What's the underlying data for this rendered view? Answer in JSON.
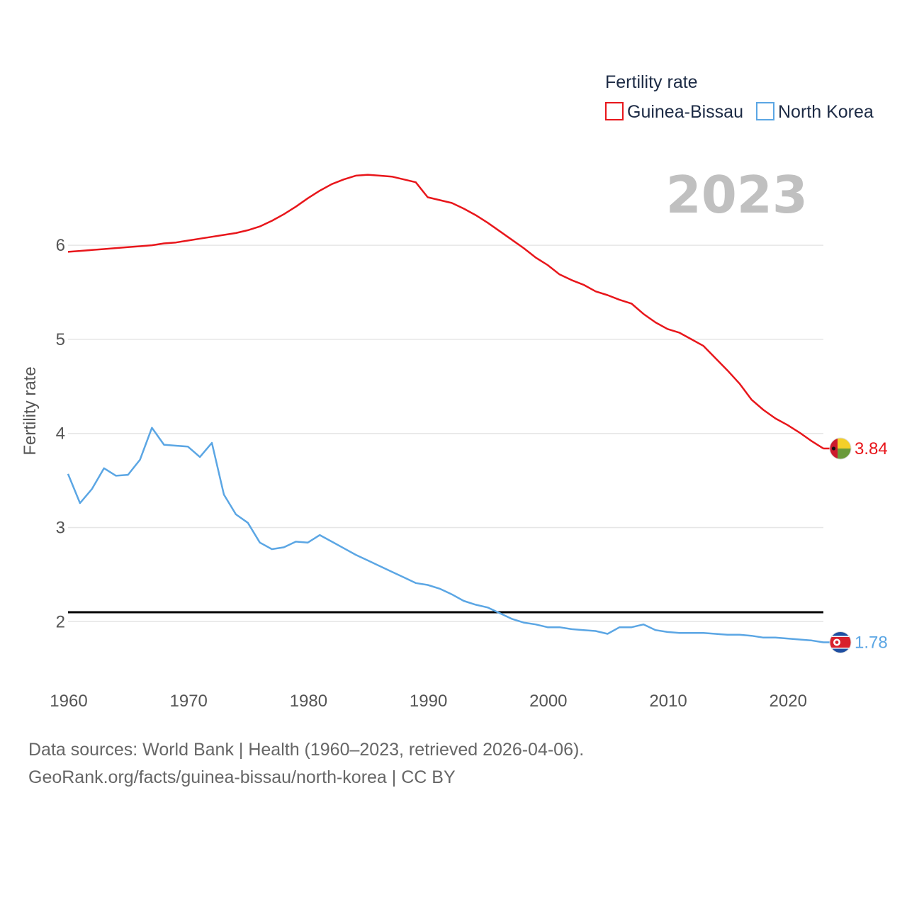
{
  "chart_data": {
    "type": "line",
    "ylabel": "Fertility rate",
    "legend_title": "Fertility rate",
    "current_year": "2023",
    "ylim": [
      1.55,
      6.95
    ],
    "xlim": [
      1960,
      2023
    ],
    "yticks": [
      2,
      3,
      4,
      5,
      6
    ],
    "xticks": [
      1960,
      1970,
      1980,
      1990,
      2000,
      2010,
      2020
    ],
    "reference_line": 2.1,
    "series": [
      {
        "name": "Guinea-Bissau",
        "color": "#e8161b",
        "end_label": "3.84",
        "flag": "guinea-bissau-flag",
        "x": [
          1960,
          1961,
          1962,
          1963,
          1964,
          1965,
          1966,
          1967,
          1968,
          1969,
          1970,
          1971,
          1972,
          1973,
          1974,
          1975,
          1976,
          1977,
          1978,
          1979,
          1980,
          1981,
          1982,
          1983,
          1984,
          1985,
          1986,
          1987,
          1988,
          1989,
          1990,
          1991,
          1992,
          1993,
          1994,
          1995,
          1996,
          1997,
          1998,
          1999,
          2000,
          2001,
          2002,
          2003,
          2004,
          2005,
          2006,
          2007,
          2008,
          2009,
          2010,
          2011,
          2012,
          2013,
          2014,
          2015,
          2016,
          2017,
          2018,
          2019,
          2020,
          2021,
          2022,
          2023
        ],
        "values": [
          5.93,
          5.94,
          5.95,
          5.96,
          5.97,
          5.98,
          5.99,
          6.0,
          6.02,
          6.03,
          6.05,
          6.07,
          6.09,
          6.11,
          6.13,
          6.16,
          6.2,
          6.26,
          6.33,
          6.41,
          6.5,
          6.58,
          6.65,
          6.7,
          6.74,
          6.75,
          6.74,
          6.73,
          6.7,
          6.67,
          6.51,
          6.48,
          6.45,
          6.39,
          6.32,
          6.24,
          6.15,
          6.06,
          5.97,
          5.87,
          5.79,
          5.69,
          5.63,
          5.58,
          5.51,
          5.47,
          5.42,
          5.38,
          5.27,
          5.18,
          5.11,
          5.07,
          5.0,
          4.93,
          4.8,
          4.67,
          4.53,
          4.36,
          4.25,
          4.16,
          4.09,
          4.01,
          3.92,
          3.84
        ]
      },
      {
        "name": "North Korea",
        "color": "#5ba6e4",
        "end_label": "1.78",
        "flag": "north-korea-flag",
        "x": [
          1960,
          1961,
          1962,
          1963,
          1964,
          1965,
          1966,
          1967,
          1968,
          1969,
          1970,
          1971,
          1972,
          1973,
          1974,
          1975,
          1976,
          1977,
          1978,
          1979,
          1980,
          1981,
          1982,
          1983,
          1984,
          1985,
          1986,
          1987,
          1988,
          1989,
          1990,
          1991,
          1992,
          1993,
          1994,
          1995,
          1996,
          1997,
          1998,
          1999,
          2000,
          2001,
          2002,
          2003,
          2004,
          2005,
          2006,
          2007,
          2008,
          2009,
          2010,
          2011,
          2012,
          2013,
          2014,
          2015,
          2016,
          2017,
          2018,
          2019,
          2020,
          2021,
          2022,
          2023
        ],
        "values": [
          3.57,
          3.26,
          3.41,
          3.63,
          3.55,
          3.56,
          3.72,
          4.06,
          3.88,
          3.87,
          3.86,
          3.75,
          3.9,
          3.35,
          3.14,
          3.05,
          2.84,
          2.77,
          2.79,
          2.85,
          2.84,
          2.92,
          2.85,
          2.78,
          2.71,
          2.65,
          2.59,
          2.53,
          2.47,
          2.41,
          2.39,
          2.35,
          2.29,
          2.22,
          2.18,
          2.15,
          2.09,
          2.03,
          1.99,
          1.97,
          1.94,
          1.94,
          1.92,
          1.91,
          1.9,
          1.87,
          1.94,
          1.94,
          1.97,
          1.91,
          1.89,
          1.88,
          1.88,
          1.88,
          1.87,
          1.86,
          1.86,
          1.85,
          1.83,
          1.83,
          1.82,
          1.81,
          1.8,
          1.78
        ]
      }
    ]
  },
  "footer": {
    "line1": "Data sources: World Bank | Health (1960–2023, retrieved 2026-04-06).",
    "line2": "GeoRank.org/facts/guinea-bissau/north-korea | CC BY"
  }
}
